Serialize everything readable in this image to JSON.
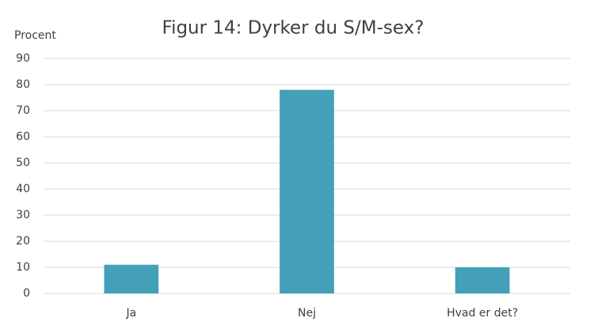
{
  "chart_data": {
    "type": "bar",
    "title": "Figur 14: Dyrker du S/M-sex?",
    "y_label": "Procent",
    "categories": [
      "Ja",
      "Nej",
      "Hvad er det?"
    ],
    "values": [
      11,
      78,
      10
    ],
    "color": "#43a0b8",
    "ylim": [
      0,
      90
    ],
    "yticks": [
      0,
      10,
      20,
      30,
      40,
      50,
      60,
      70,
      80,
      90
    ],
    "grid": true
  }
}
